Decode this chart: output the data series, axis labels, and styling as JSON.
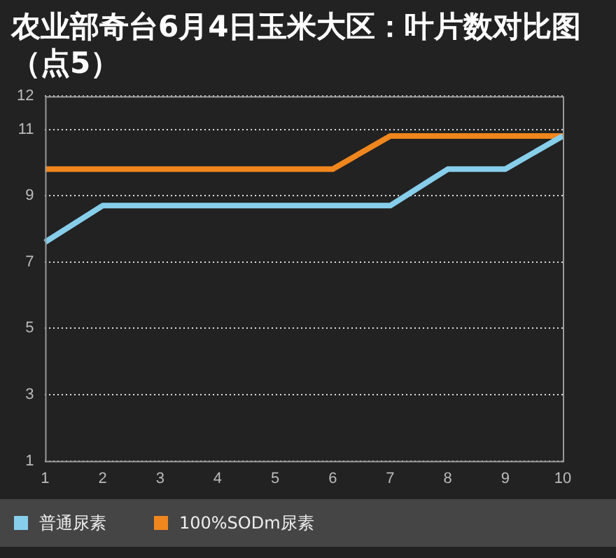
{
  "chart_data": {
    "type": "line",
    "title": "农业部奇台6月4日玉米大区：叶片数对比图（点5）",
    "categories": [
      "1",
      "2",
      "3",
      "4",
      "5",
      "6",
      "7",
      "8",
      "9",
      "10"
    ],
    "series": [
      {
        "name": "普通尿素",
        "color": "#87ceeb",
        "values": [
          7.6,
          8.7,
          8.7,
          8.7,
          8.7,
          8.7,
          8.7,
          9.8,
          9.8,
          10.8
        ]
      },
      {
        "name": "100%SODm尿素",
        "color": "#f0861e",
        "values": [
          9.8,
          9.8,
          9.8,
          9.8,
          9.8,
          9.8,
          10.8,
          10.8,
          10.8,
          10.8
        ]
      }
    ],
    "ylim": [
      1,
      12
    ],
    "yticks": [
      1,
      3,
      5,
      7,
      9,
      11,
      12
    ],
    "grid": "y",
    "legend": "bottom",
    "marker": "none",
    "line_style": "solid"
  }
}
